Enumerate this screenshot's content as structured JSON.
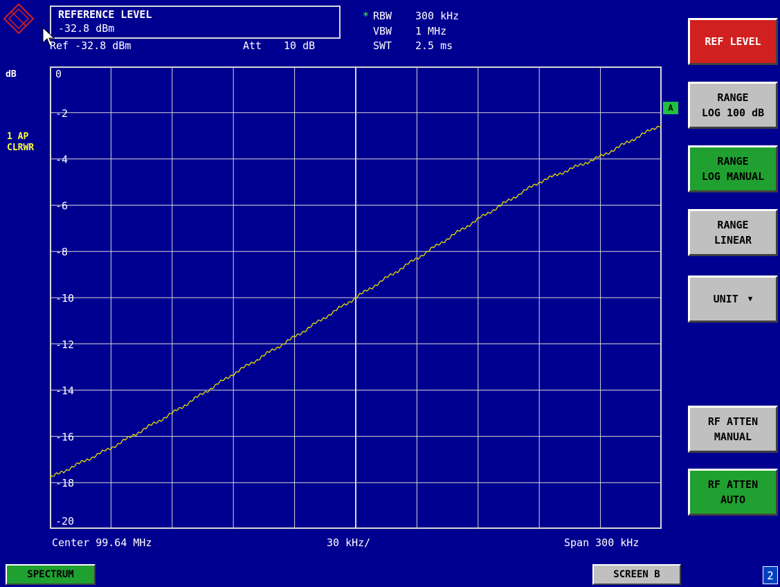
{
  "colors": {
    "background": "#000090",
    "grid": "#d8d8d8",
    "trace": "#e8e000",
    "label_yellow": "#ffff40",
    "button_gray": "#c0c0c0",
    "button_green": "#20a030",
    "button_red": "#d02020"
  },
  "dialog": {
    "title": "REFERENCE LEVEL",
    "value": "-32.8 dBm"
  },
  "header": {
    "ref": "Ref -32.8 dBm",
    "att_label": "Att",
    "att_value": "10 dB",
    "rbw_star": "*",
    "rbw_label": "RBW",
    "rbw_value": "300 kHz",
    "vbw_label": "VBW",
    "vbw_value": "1 MHz",
    "swt_label": "SWT",
    "swt_value": "2.5 ms"
  },
  "left_labels": {
    "unit": "dB",
    "trace_line1": "1 AP",
    "trace_line2": "CLRWR"
  },
  "trace_marker": "A",
  "footer": {
    "center": "Center 99.64 MHz",
    "div": "30 kHz/",
    "span": "Span 300 kHz"
  },
  "softkeys": [
    {
      "line1": "REF LEVEL",
      "line2": "",
      "style": "red"
    },
    {
      "line1": "RANGE",
      "line2": "LOG 100 dB",
      "style": "gray"
    },
    {
      "line1": "RANGE",
      "line2": "LOG MANUAL",
      "style": "green"
    },
    {
      "line1": "RANGE",
      "line2": "LINEAR",
      "style": "gray"
    },
    {
      "line1": "UNIT",
      "line2": "",
      "style": "gray"
    },
    {
      "line1": "RF ATTEN",
      "line2": "MANUAL",
      "style": "gray"
    },
    {
      "line1": "RF ATTEN",
      "line2": "AUTO",
      "style": "green"
    }
  ],
  "bottom": {
    "spectrum": "SPECTRUM",
    "screen_b": "SCREEN B",
    "page_num": "2"
  },
  "chart_data": {
    "type": "line",
    "xlabel": "",
    "ylabel": "dB",
    "ylim": [
      -20,
      0
    ],
    "y_ticks": [
      "0",
      "-2",
      "-4",
      "-6",
      "-8",
      "-10",
      "-12",
      "-14",
      "-16",
      "-18",
      "-20"
    ],
    "x_divisions": 10,
    "grid": true,
    "series": [
      {
        "x": [
          0,
          1,
          2,
          3,
          4,
          5,
          6,
          7,
          8,
          9,
          10
        ],
        "values": [
          -17.8,
          -16.5,
          -15.0,
          -13.3,
          -11.7,
          -10.0,
          -8.3,
          -6.6,
          -5.0,
          -3.9,
          -2.5
        ]
      }
    ]
  }
}
